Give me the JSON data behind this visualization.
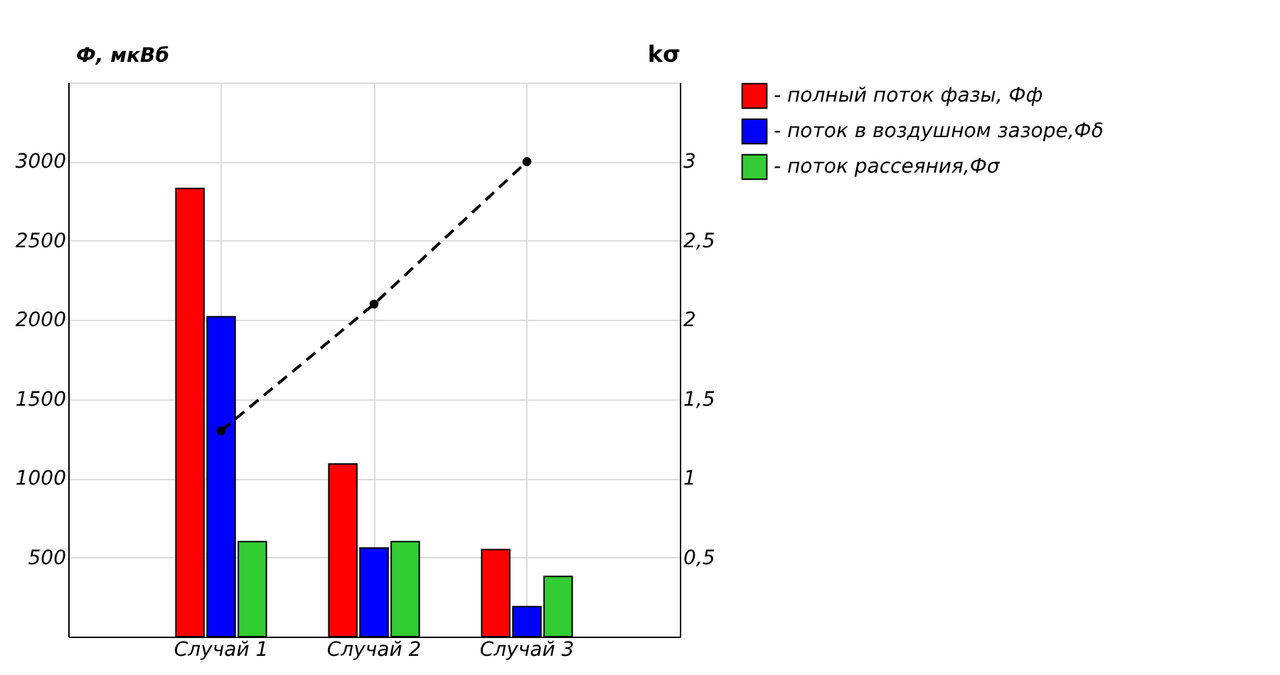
{
  "chart_data": {
    "type": "bar",
    "ylabel": "Ф, мкВб",
    "y2label": "kσ",
    "categories": [
      "Случай 1",
      "Случай 2",
      "Случай 3"
    ],
    "ylim": [
      0,
      3500
    ],
    "yticks": [
      500,
      1000,
      1500,
      2000,
      2500,
      3000
    ],
    "y2lim": [
      0,
      3.5
    ],
    "y2ticks": [
      {
        "value": 0.5,
        "label": "0,5"
      },
      1,
      {
        "value": 1.5,
        "label": "1,5"
      },
      2,
      {
        "value": 2.5,
        "label": "2,5"
      },
      3
    ],
    "grid": true,
    "legend": "right",
    "series": [
      {
        "name": "- полный поток фазы, Фф",
        "color": "#ff0000",
        "values": [
          2830,
          1090,
          550
        ]
      },
      {
        "name": "- поток в воздушном зазоре,Фδ",
        "color": "#0000ff",
        "values": [
          2020,
          560,
          190
        ]
      },
      {
        "name": "- поток рассеяния,Фσ",
        "color": "#33cc33",
        "values": [
          600,
          600,
          380
        ]
      },
      {
        "type": "line",
        "axis": "y2",
        "color": "#000000",
        "values": [
          1.3,
          2.1,
          3.0
        ],
        "marker": "circle",
        "line_style": "dashed"
      }
    ]
  }
}
